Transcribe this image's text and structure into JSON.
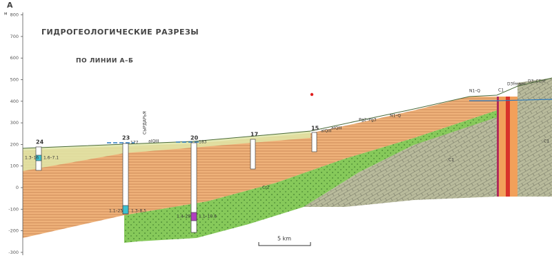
{
  "header": {
    "axis_letter": "А",
    "title": "ГИДРОГЕОЛОГИЧЕСКИЕ РАЗРЕЗЫ",
    "subtitle": "ПО ЛИНИИ А–Б"
  },
  "elevation_axis": {
    "unit": "м",
    "ticks": [
      800,
      700,
      600,
      500,
      400,
      300,
      200,
      100,
      0,
      -100,
      -200,
      -300
    ]
  },
  "wells": [
    {
      "label": "24",
      "notes": [
        "1.3–16",
        "1.6–7.1"
      ]
    },
    {
      "label": "23",
      "notes": [
        "1.1–25",
        "1.3–8.5"
      ]
    },
    {
      "label": "20",
      "notes": [
        "1.4–29",
        "1.1–10.8"
      ]
    },
    {
      "label": "17",
      "notes": []
    },
    {
      "label": "15",
      "notes": []
    }
  ],
  "river": "СЫРДАРЬЯ",
  "levels": [
    "177",
    "183"
  ],
  "indices": [
    "aIQIII",
    "aIQIII",
    "aIQIII",
    "Pg2–Pg3",
    "N1–Q",
    "N1–Q",
    "C1",
    "D3fmam",
    "D3–C1nt",
    "Cr2",
    "C1",
    "C1"
  ],
  "scale": "5 km"
}
